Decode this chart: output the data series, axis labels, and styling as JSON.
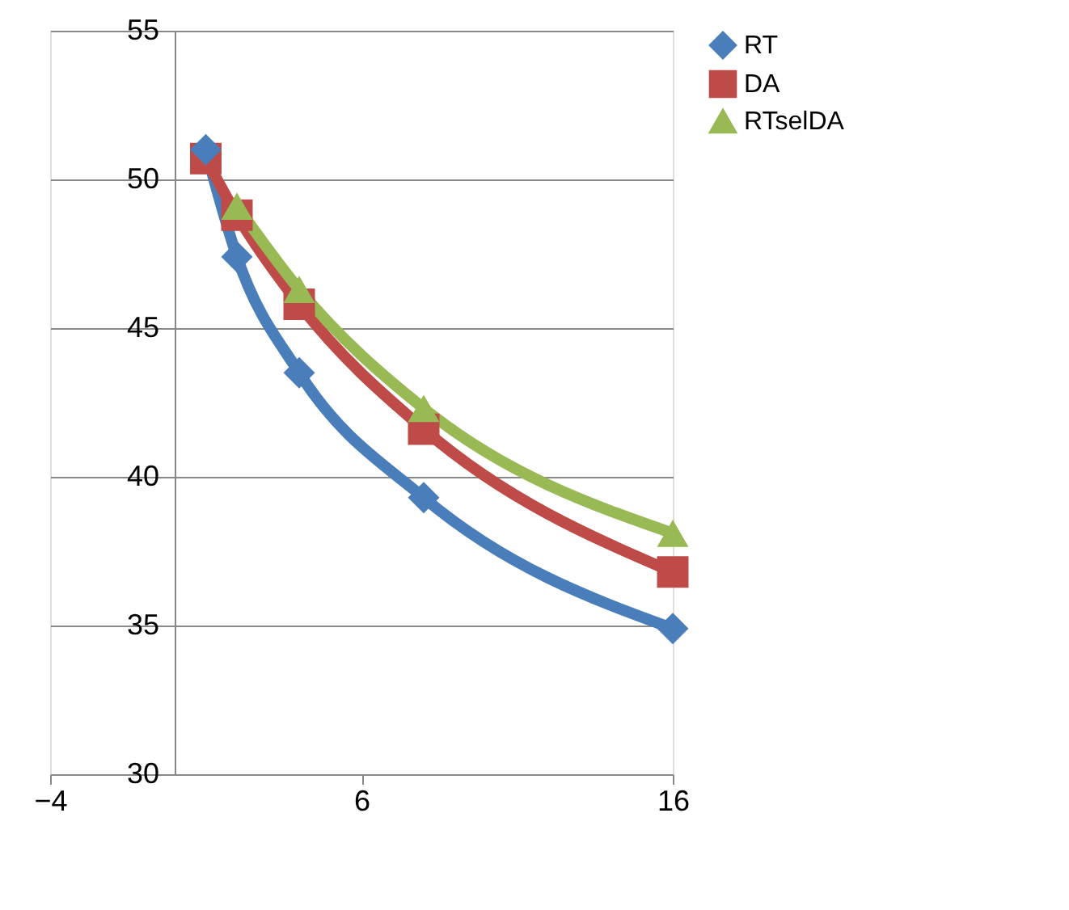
{
  "chart_data": {
    "type": "line",
    "x": [
      1,
      2,
      4,
      8,
      16
    ],
    "series": [
      {
        "name": "RT",
        "color": "#4a7ebb",
        "marker": "diamond",
        "values": [
          51.0,
          47.4,
          43.5,
          39.3,
          34.9
        ]
      },
      {
        "name": "DA",
        "color": "#be4b48",
        "marker": "square",
        "values": [
          50.7,
          48.8,
          45.8,
          41.6,
          36.8
        ]
      },
      {
        "name": "RTselDA",
        "color": "#98b954",
        "marker": "triangle",
        "x": [
          2,
          4,
          8,
          16
        ],
        "values": [
          49.1,
          46.3,
          42.3,
          38.1
        ]
      }
    ],
    "xlim": [
      -4,
      16
    ],
    "xticks": [
      -4,
      6,
      16
    ],
    "ylim": [
      30,
      55
    ],
    "yticks": [
      30,
      35,
      40,
      45,
      50,
      55
    ],
    "grid": "y",
    "legend": "right",
    "line_style": "solid"
  }
}
